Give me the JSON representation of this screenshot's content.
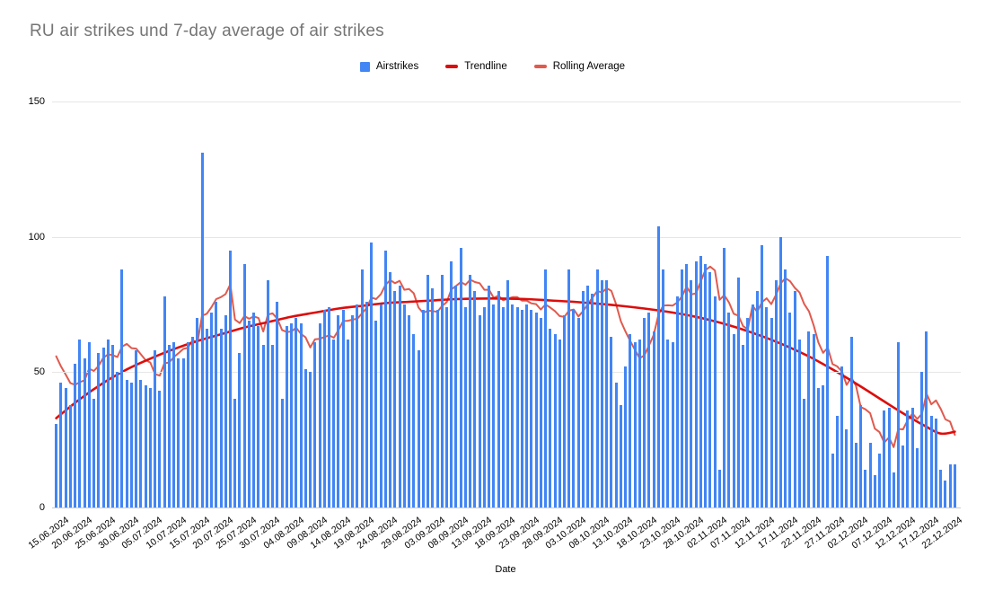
{
  "chart": {
    "title": "RU air strikes und 7-day average of air strikes",
    "x_axis_title": "Date",
    "legend": [
      {
        "label": "Airstrikes",
        "swatch": "square",
        "color": "#4285f4"
      },
      {
        "label": "Trendline",
        "swatch": "dash",
        "color": "#dc0d0c"
      },
      {
        "label": "Rolling Average",
        "swatch": "dash",
        "color": "#e05a4e"
      }
    ],
    "colors": {
      "bar": "#4285f4",
      "trendline": "#dc0d0c",
      "rolling_average": "#e05a4e",
      "gridline": "#e6e6e6",
      "baseline": "#cccccc",
      "title_text": "#757575",
      "axis_text": "#000000",
      "background": "#ffffff"
    }
  },
  "chart_data": {
    "type": "bar",
    "title": "RU air strikes und 7-day average of air strikes",
    "xlabel": "Date",
    "ylabel": "",
    "ylim": [
      0,
      150
    ],
    "y_ticks": [
      0,
      50,
      100,
      150
    ],
    "grid": "horizontal",
    "legend_position": "top-center",
    "start_date": "15.06.2024",
    "days_per_tick": 5,
    "x_tick_labels": [
      "15.06.2024",
      "20.06.2024",
      "25.06.2024",
      "30.06.2024",
      "05.07.2024",
      "10.07.2024",
      "15.07.2024",
      "20.07.2024",
      "25.07.2024",
      "30.07.2024",
      "04.08.2024",
      "09.08.2024",
      "14.08.2024",
      "19.08.2024",
      "24.08.2024",
      "29.08.2024",
      "03.09.2024",
      "08.09.2024",
      "13.09.2024",
      "18.09.2024",
      "23.09.2024",
      "28.09.2024",
      "03.10.2024",
      "08.10.2024",
      "13.10.2024",
      "18.10.2024",
      "23.10.2024",
      "28.10.2024",
      "02.11.2024",
      "07.11.2024",
      "12.11.2024",
      "17.11.2024",
      "22.11.2024",
      "27.11.2024",
      "02.12.2024",
      "07.12.2024",
      "12.12.2024",
      "17.12.2024",
      "22.12.2024"
    ],
    "series": [
      {
        "name": "Airstrikes",
        "render": "bar",
        "values": [
          31,
          46,
          44,
          38,
          53,
          62,
          55,
          61,
          40,
          57,
          59,
          62,
          60,
          50,
          88,
          47,
          46,
          58,
          47,
          45,
          44,
          58,
          43,
          78,
          60,
          61,
          55,
          55,
          61,
          63,
          70,
          131,
          66,
          72,
          76,
          66,
          71,
          95,
          40,
          57,
          90,
          69,
          72,
          67,
          60,
          84,
          60,
          76,
          40,
          67,
          68,
          70,
          68,
          51,
          50,
          61,
          68,
          73,
          74,
          62,
          71,
          73,
          62,
          71,
          75,
          88,
          76,
          98,
          69,
          75,
          95,
          87,
          80,
          82,
          75,
          71,
          64,
          58,
          73,
          86,
          81,
          73,
          86,
          74,
          91,
          82,
          96,
          74,
          86,
          80,
          71,
          74,
          82,
          75,
          80,
          74,
          84,
          75,
          74,
          73,
          75,
          73,
          72,
          70,
          88,
          66,
          64,
          62,
          71,
          88,
          73,
          70,
          80,
          82,
          79,
          88,
          84,
          84,
          63,
          46,
          38,
          52,
          64,
          61,
          62,
          70,
          72,
          65,
          104,
          88,
          62,
          61,
          78,
          88,
          90,
          84,
          91,
          93,
          90,
          87,
          78,
          14,
          96,
          72,
          64,
          85,
          60,
          70,
          75,
          80,
          97,
          74,
          70,
          84,
          100,
          88,
          72,
          80,
          62,
          40,
          65,
          64,
          44,
          45,
          93,
          20,
          34,
          52,
          29,
          63,
          24,
          38,
          14,
          24,
          12,
          20,
          36,
          37,
          13,
          61,
          23,
          36,
          37,
          22,
          50,
          65,
          34,
          33,
          14,
          10,
          16,
          16
        ]
      },
      {
        "name": "Trendline",
        "render": "smooth-line",
        "points": [
          [
            0,
            33
          ],
          [
            5,
            40
          ],
          [
            10,
            46
          ],
          [
            15,
            51
          ],
          [
            20,
            55
          ],
          [
            25,
            58.5
          ],
          [
            30,
            61.5
          ],
          [
            35,
            64
          ],
          [
            40,
            66.5
          ],
          [
            45,
            68.5
          ],
          [
            50,
            70.5
          ],
          [
            55,
            72
          ],
          [
            60,
            73.5
          ],
          [
            65,
            74.5
          ],
          [
            70,
            75.5
          ],
          [
            75,
            76
          ],
          [
            80,
            76.5
          ],
          [
            85,
            77
          ],
          [
            90,
            77.2
          ],
          [
            95,
            77.2
          ],
          [
            100,
            77
          ],
          [
            105,
            76.5
          ],
          [
            110,
            76
          ],
          [
            115,
            75.3
          ],
          [
            120,
            74.5
          ],
          [
            125,
            73.5
          ],
          [
            130,
            72.3
          ],
          [
            135,
            70.8
          ],
          [
            140,
            68.8
          ],
          [
            145,
            66.3
          ],
          [
            150,
            63.3
          ],
          [
            155,
            59.8
          ],
          [
            160,
            55.8
          ],
          [
            165,
            51
          ],
          [
            170,
            45.8
          ],
          [
            175,
            40.3
          ],
          [
            180,
            34.8
          ],
          [
            185,
            29.8
          ],
          [
            188,
            27.3
          ],
          [
            191,
            28
          ]
        ]
      },
      {
        "name": "Rolling Average",
        "render": "line",
        "derived": "7-day trailing average of Airstrikes",
        "window": 7,
        "seed_values_before_start": [
          72,
          65,
          60,
          58,
          55,
          50
        ]
      }
    ]
  }
}
